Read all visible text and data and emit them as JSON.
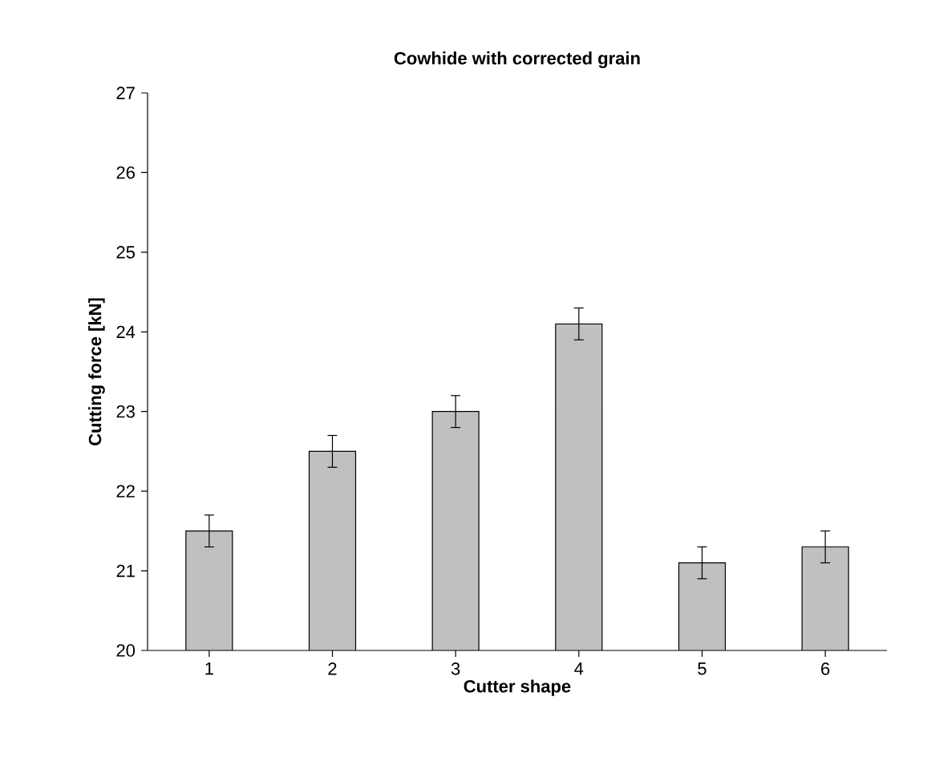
{
  "chart_data": {
    "type": "bar",
    "title": "Cowhide with corrected grain",
    "xlabel": "Cutter shape",
    "ylabel": "Cutting force [kN]",
    "categories": [
      "1",
      "2",
      "3",
      "4",
      "5",
      "6"
    ],
    "values": [
      21.5,
      22.5,
      23.0,
      24.1,
      21.1,
      21.3
    ],
    "errors": [
      0.2,
      0.2,
      0.2,
      0.2,
      0.2,
      0.2
    ],
    "color": "#c0c0c0",
    "ylim": [
      20,
      27
    ],
    "yticks": [
      20,
      21,
      22,
      23,
      24,
      25,
      26,
      27
    ],
    "grid": false
  }
}
